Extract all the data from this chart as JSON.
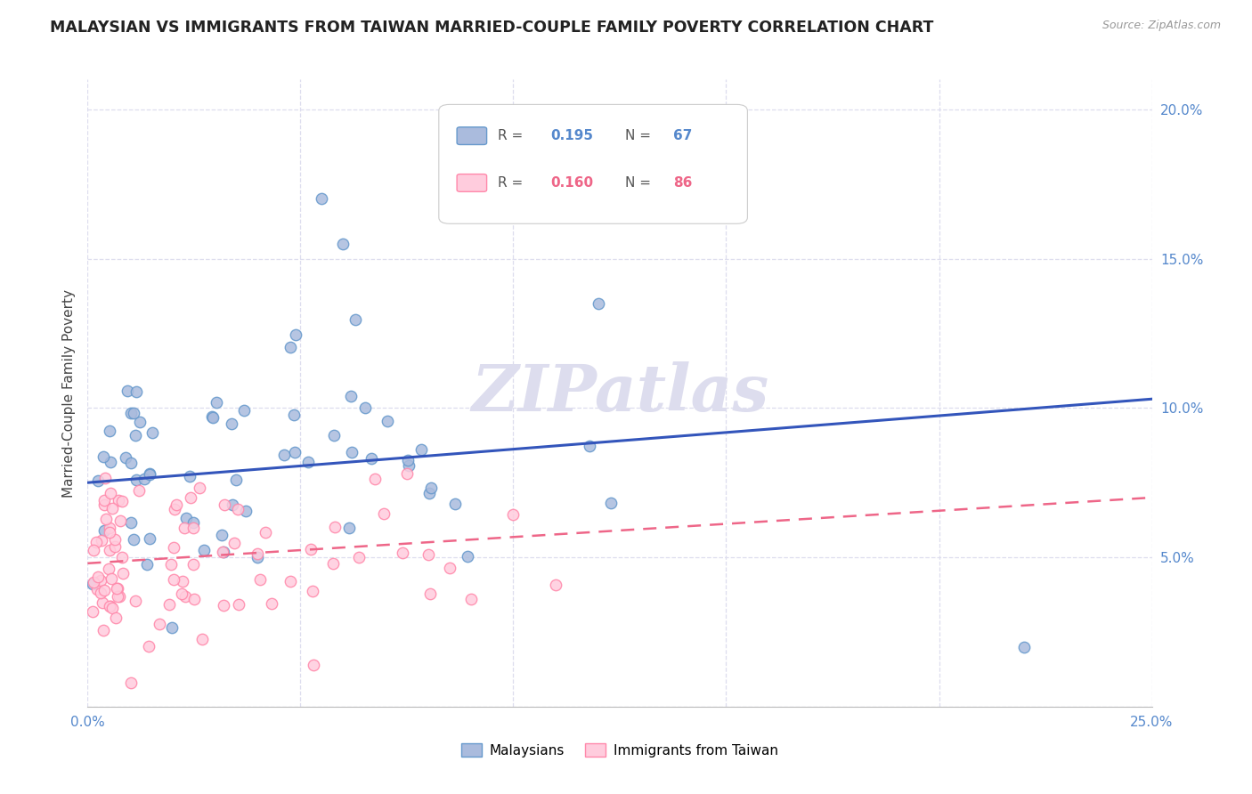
{
  "title": "MALAYSIAN VS IMMIGRANTS FROM TAIWAN MARRIED-COUPLE FAMILY POVERTY CORRELATION CHART",
  "source": "Source: ZipAtlas.com",
  "ylabel": "Married-Couple Family Poverty",
  "xmin": 0.0,
  "xmax": 0.25,
  "ymin": 0.0,
  "ymax": 0.21,
  "ytick_labels": [
    "",
    "5.0%",
    "10.0%",
    "15.0%",
    "20.0%"
  ],
  "ytick_values": [
    0.0,
    0.05,
    0.1,
    0.15,
    0.2
  ],
  "xtick_labels": [
    "0.0%",
    "",
    "",
    "",
    "",
    "25.0%"
  ],
  "xtick_values": [
    0.0,
    0.05,
    0.1,
    0.15,
    0.2,
    0.25
  ],
  "R_malaysian": 0.195,
  "N_malaysian": 67,
  "R_taiwan": 0.16,
  "N_taiwan": 86,
  "malaysian_dot_color": "#aabbdd",
  "malaysian_edge_color": "#6699cc",
  "taiwan_dot_color": "#ffccdd",
  "taiwan_edge_color": "#ff88aa",
  "trendline_malaysian_color": "#3355bb",
  "trendline_taiwan_color": "#ee6688",
  "watermark": "ZIPatlas",
  "watermark_color": "#ddddee",
  "tick_color": "#5588cc",
  "grid_color": "#ddddee",
  "legend_box_color": "#ddddee",
  "m_trend_x0": 0.0,
  "m_trend_y0": 0.075,
  "m_trend_x1": 0.25,
  "m_trend_y1": 0.103,
  "t_trend_x0": 0.0,
  "t_trend_y0": 0.048,
  "t_trend_x1": 0.25,
  "t_trend_y1": 0.07
}
